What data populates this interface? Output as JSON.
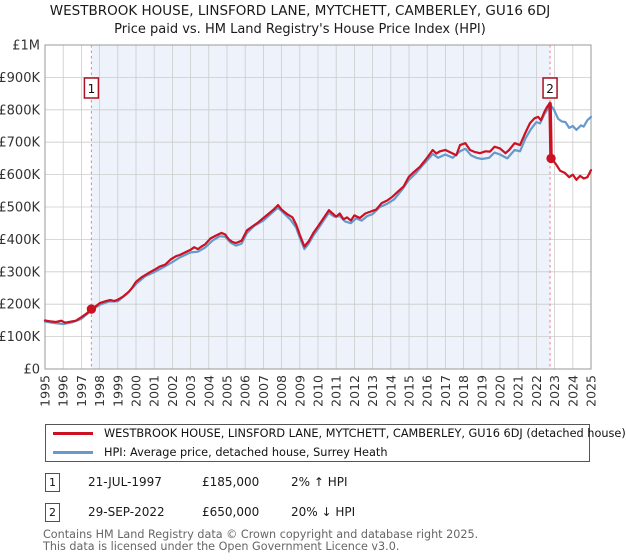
{
  "title": {
    "line1": "WESTBROOK HOUSE, LINSFORD LANE, MYTCHETT, CAMBERLEY, GU16 6DJ",
    "line2": "Price paid vs. HM Land Registry's House Price Index (HPI)"
  },
  "colors": {
    "price_line": "#cc1122",
    "hpi_line": "#6699cc",
    "sale_dashed_line": "#ee8899",
    "shaded_band": "#eef2fb",
    "grid": "#cccccc",
    "plot_border": "#999999",
    "marker_box_border": "#aa1122",
    "tick_text": "#333333"
  },
  "chart_data": {
    "type": "line",
    "xlim": [
      1995,
      2025
    ],
    "ylim": [
      0,
      1000000
    ],
    "grid": true,
    "legend_position": "bottom",
    "x_ticks": [
      1995,
      1996,
      1997,
      1998,
      1999,
      2000,
      2001,
      2002,
      2003,
      2004,
      2005,
      2006,
      2007,
      2008,
      2009,
      2010,
      2011,
      2012,
      2013,
      2014,
      2015,
      2016,
      2017,
      2018,
      2019,
      2020,
      2021,
      2022,
      2023,
      2024,
      2025
    ],
    "y_ticks": [
      {
        "value": 0,
        "label": "£0"
      },
      {
        "value": 100000,
        "label": "£100K"
      },
      {
        "value": 200000,
        "label": "£200K"
      },
      {
        "value": 300000,
        "label": "£300K"
      },
      {
        "value": 400000,
        "label": "£400K"
      },
      {
        "value": 500000,
        "label": "£500K"
      },
      {
        "value": 600000,
        "label": "£600K"
      },
      {
        "value": 700000,
        "label": "£700K"
      },
      {
        "value": 800000,
        "label": "£800K"
      },
      {
        "value": 900000,
        "label": "£900K"
      },
      {
        "value": 1000000,
        "label": "£1M"
      }
    ],
    "shaded_band": {
      "from": 1997.55,
      "to": 2022.75
    },
    "series": [
      {
        "name": "HPI: Average price, detached house, Surrey Heath",
        "color": "#6699cc",
        "points": [
          [
            1995.0,
            146000
          ],
          [
            1995.5,
            142000
          ],
          [
            1996.0,
            139000
          ],
          [
            1996.5,
            144000
          ],
          [
            1997.0,
            155000
          ],
          [
            1997.55,
            181000
          ],
          [
            1998.0,
            198000
          ],
          [
            1998.5,
            208000
          ],
          [
            1999.0,
            209000
          ],
          [
            1999.5,
            232000
          ],
          [
            2000.0,
            262000
          ],
          [
            2000.5,
            286000
          ],
          [
            2001.0,
            299000
          ],
          [
            2001.5,
            314000
          ],
          [
            2002.0,
            330000
          ],
          [
            2002.4,
            344000
          ],
          [
            2003.0,
            360000
          ],
          [
            2003.4,
            362000
          ],
          [
            2003.8,
            375000
          ],
          [
            2004.2,
            396000
          ],
          [
            2004.6,
            410000
          ],
          [
            2004.9,
            408000
          ],
          [
            2005.2,
            390000
          ],
          [
            2005.5,
            381000
          ],
          [
            2005.8,
            387000
          ],
          [
            2006.1,
            420000
          ],
          [
            2006.5,
            442000
          ],
          [
            2007.0,
            458000
          ],
          [
            2007.4,
            478000
          ],
          [
            2007.8,
            498000
          ],
          [
            2008.1,
            482000
          ],
          [
            2008.5,
            460000
          ],
          [
            2008.8,
            436000
          ],
          [
            2009.0,
            405000
          ],
          [
            2009.25,
            370000
          ],
          [
            2009.5,
            388000
          ],
          [
            2009.75,
            412000
          ],
          [
            2010.0,
            432000
          ],
          [
            2010.3,
            458000
          ],
          [
            2010.6,
            482000
          ],
          [
            2010.9,
            470000
          ],
          [
            2011.2,
            472000
          ],
          [
            2011.5,
            455000
          ],
          [
            2011.8,
            450000
          ],
          [
            2012.1,
            465000
          ],
          [
            2012.4,
            458000
          ],
          [
            2012.7,
            472000
          ],
          [
            2013.0,
            478000
          ],
          [
            2013.4,
            500000
          ],
          [
            2013.8,
            510000
          ],
          [
            2014.2,
            524000
          ],
          [
            2014.6,
            552000
          ],
          [
            2015.0,
            584000
          ],
          [
            2015.4,
            606000
          ],
          [
            2015.8,
            632000
          ],
          [
            2016.1,
            650000
          ],
          [
            2016.3,
            664000
          ],
          [
            2016.6,
            652000
          ],
          [
            2017.0,
            662000
          ],
          [
            2017.4,
            652000
          ],
          [
            2017.8,
            672000
          ],
          [
            2018.1,
            680000
          ],
          [
            2018.4,
            660000
          ],
          [
            2018.7,
            652000
          ],
          [
            2019.0,
            648000
          ],
          [
            2019.4,
            652000
          ],
          [
            2019.7,
            668000
          ],
          [
            2020.0,
            662000
          ],
          [
            2020.4,
            650000
          ],
          [
            2020.8,
            676000
          ],
          [
            2021.1,
            672000
          ],
          [
            2021.4,
            712000
          ],
          [
            2021.7,
            740000
          ],
          [
            2022.0,
            762000
          ],
          [
            2022.2,
            758000
          ],
          [
            2022.45,
            788000
          ],
          [
            2022.6,
            800000
          ],
          [
            2022.78,
            814000
          ],
          [
            2022.9,
            806000
          ],
          [
            2023.0,
            796000
          ],
          [
            2023.2,
            772000
          ],
          [
            2023.4,
            764000
          ],
          [
            2023.6,
            762000
          ],
          [
            2023.8,
            744000
          ],
          [
            2024.0,
            750000
          ],
          [
            2024.2,
            738000
          ],
          [
            2024.45,
            752000
          ],
          [
            2024.6,
            748000
          ],
          [
            2024.8,
            768000
          ],
          [
            2025.0,
            778000
          ]
        ]
      },
      {
        "name": "WESTBROOK HOUSE, LINSFORD LANE, MYTCHETT, CAMBERLEY, GU16 6DJ (detached house)",
        "color": "#cc1122",
        "points": [
          [
            1995.0,
            150000
          ],
          [
            1995.3,
            147000
          ],
          [
            1995.6,
            145000
          ],
          [
            1995.9,
            149000
          ],
          [
            1996.1,
            143000
          ],
          [
            1996.4,
            146000
          ],
          [
            1996.7,
            149000
          ],
          [
            1997.0,
            160000
          ],
          [
            1997.3,
            172000
          ],
          [
            1997.55,
            185000
          ],
          [
            1997.8,
            194000
          ],
          [
            1998.0,
            203000
          ],
          [
            1998.3,
            209000
          ],
          [
            1998.6,
            213000
          ],
          [
            1998.8,
            210000
          ],
          [
            1999.0,
            214000
          ],
          [
            1999.3,
            224000
          ],
          [
            1999.6,
            238000
          ],
          [
            1999.8,
            252000
          ],
          [
            2000.0,
            269000
          ],
          [
            2000.3,
            283000
          ],
          [
            2000.6,
            293000
          ],
          [
            2000.8,
            300000
          ],
          [
            2001.0,
            306000
          ],
          [
            2001.3,
            316000
          ],
          [
            2001.6,
            322000
          ],
          [
            2001.9,
            338000
          ],
          [
            2002.2,
            348000
          ],
          [
            2002.4,
            352000
          ],
          [
            2002.7,
            360000
          ],
          [
            2003.0,
            368000
          ],
          [
            2003.2,
            376000
          ],
          [
            2003.4,
            370000
          ],
          [
            2003.6,
            378000
          ],
          [
            2003.8,
            385000
          ],
          [
            2004.1,
            403000
          ],
          [
            2004.4,
            412000
          ],
          [
            2004.7,
            420000
          ],
          [
            2004.9,
            415000
          ],
          [
            2005.1,
            400000
          ],
          [
            2005.3,
            392000
          ],
          [
            2005.5,
            389000
          ],
          [
            2005.8,
            396000
          ],
          [
            2006.1,
            428000
          ],
          [
            2006.4,
            440000
          ],
          [
            2006.7,
            452000
          ],
          [
            2007.0,
            466000
          ],
          [
            2007.3,
            480000
          ],
          [
            2007.6,
            494000
          ],
          [
            2007.8,
            506000
          ],
          [
            2008.0,
            492000
          ],
          [
            2008.3,
            478000
          ],
          [
            2008.6,
            468000
          ],
          [
            2008.8,
            445000
          ],
          [
            2009.0,
            414000
          ],
          [
            2009.25,
            378000
          ],
          [
            2009.5,
            395000
          ],
          [
            2009.75,
            420000
          ],
          [
            2010.0,
            440000
          ],
          [
            2010.3,
            465000
          ],
          [
            2010.6,
            490000
          ],
          [
            2010.8,
            480000
          ],
          [
            2011.0,
            470000
          ],
          [
            2011.2,
            480000
          ],
          [
            2011.4,
            462000
          ],
          [
            2011.6,
            468000
          ],
          [
            2011.8,
            458000
          ],
          [
            2012.0,
            474000
          ],
          [
            2012.3,
            466000
          ],
          [
            2012.6,
            480000
          ],
          [
            2012.9,
            486000
          ],
          [
            2013.2,
            492000
          ],
          [
            2013.5,
            512000
          ],
          [
            2013.8,
            520000
          ],
          [
            2014.1,
            532000
          ],
          [
            2014.4,
            548000
          ],
          [
            2014.7,
            563000
          ],
          [
            2015.0,
            594000
          ],
          [
            2015.3,
            610000
          ],
          [
            2015.6,
            624000
          ],
          [
            2015.9,
            645000
          ],
          [
            2016.1,
            660000
          ],
          [
            2016.3,
            676000
          ],
          [
            2016.5,
            665000
          ],
          [
            2016.7,
            672000
          ],
          [
            2017.0,
            676000
          ],
          [
            2017.3,
            668000
          ],
          [
            2017.6,
            660000
          ],
          [
            2017.8,
            691000
          ],
          [
            2018.1,
            697000
          ],
          [
            2018.35,
            676000
          ],
          [
            2018.6,
            670000
          ],
          [
            2018.9,
            666000
          ],
          [
            2019.2,
            672000
          ],
          [
            2019.45,
            671000
          ],
          [
            2019.7,
            686000
          ],
          [
            2020.0,
            681000
          ],
          [
            2020.3,
            666000
          ],
          [
            2020.5,
            676000
          ],
          [
            2020.8,
            697000
          ],
          [
            2021.1,
            691000
          ],
          [
            2021.4,
            730000
          ],
          [
            2021.65,
            759000
          ],
          [
            2021.9,
            774000
          ],
          [
            2022.1,
            778000
          ],
          [
            2022.25,
            768000
          ],
          [
            2022.45,
            795000
          ],
          [
            2022.6,
            810000
          ],
          [
            2022.75,
            822000
          ],
          [
            2022.78,
            650000
          ],
          [
            2022.9,
            645000
          ],
          [
            2023.1,
            630000
          ],
          [
            2023.3,
            612000
          ],
          [
            2023.55,
            606000
          ],
          [
            2023.8,
            592000
          ],
          [
            2024.0,
            600000
          ],
          [
            2024.2,
            584000
          ],
          [
            2024.4,
            596000
          ],
          [
            2024.6,
            588000
          ],
          [
            2024.8,
            592000
          ],
          [
            2025.0,
            614000
          ]
        ]
      }
    ],
    "sales": [
      {
        "box": "1",
        "date": "21-JUL-1997",
        "x": 1997.55,
        "price": 185000
      },
      {
        "box": "2",
        "date": "29-SEP-2022",
        "x": 2022.75,
        "price": 650000,
        "drop_from": 822000
      }
    ]
  },
  "legend": {
    "items": [
      {
        "label": "WESTBROOK HOUSE, LINSFORD LANE, MYTCHETT, CAMBERLEY, GU16 6DJ (detached house)",
        "color": "#cc1122"
      },
      {
        "label": "HPI: Average price, detached house, Surrey Heath",
        "color": "#6699cc"
      }
    ]
  },
  "annotations": [
    {
      "num": "1",
      "date": "21-JUL-1997",
      "price": "£185,000",
      "hpi": "2% ↑ HPI"
    },
    {
      "num": "2",
      "date": "29-SEP-2022",
      "price": "£650,000",
      "hpi": "20% ↓ HPI"
    }
  ],
  "footer": {
    "line1": "Contains HM Land Registry data © Crown copyright and database right 2025.",
    "line2": "This data is licensed under the Open Government Licence v3.0."
  }
}
